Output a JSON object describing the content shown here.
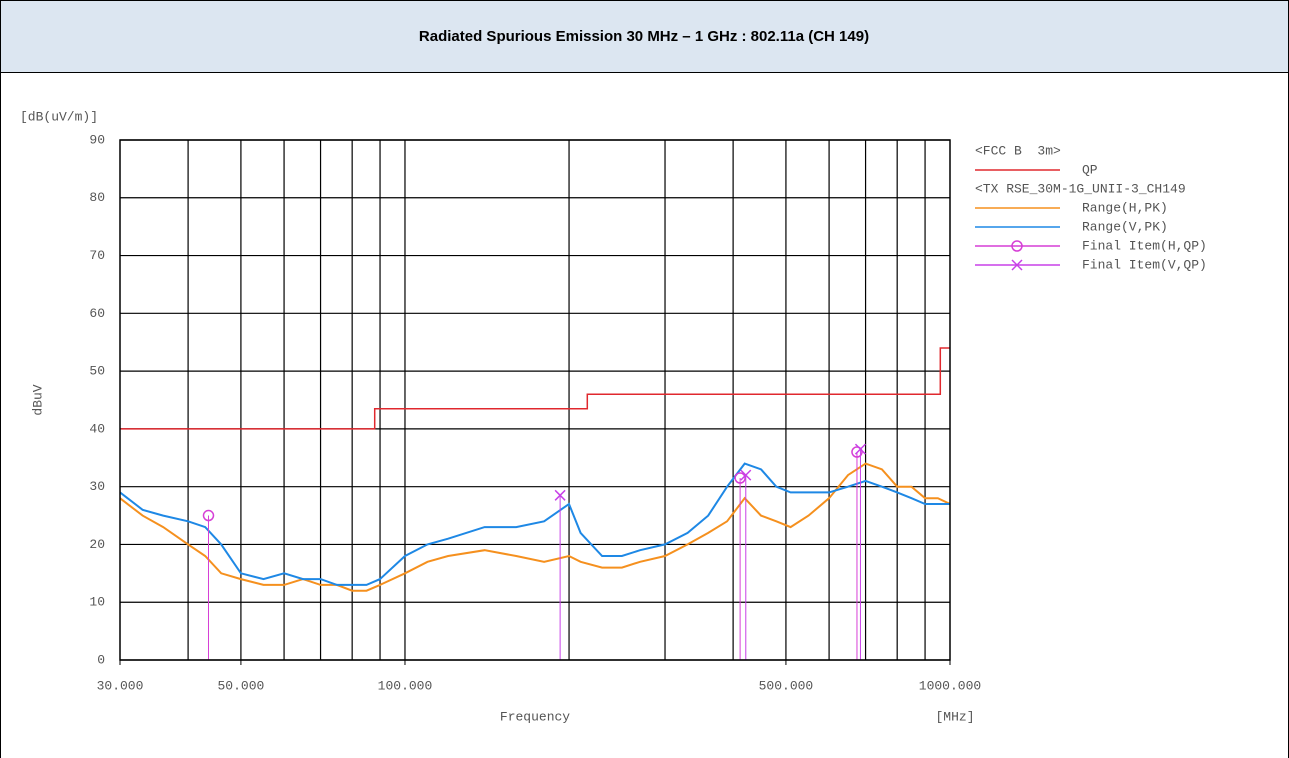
{
  "chart_data": {
    "type": "line",
    "title": "Radiated Spurious Emission 30 MHz – 1 GHz : 802.11a (CH 149)",
    "y_unit": "[dB(uV/m)]",
    "ylabel": "dBuV",
    "xlabel": "Frequency",
    "x_unit": "[MHz]",
    "xscale": "log",
    "grid": true,
    "xlim": [
      30,
      1000
    ],
    "ylim": [
      0,
      90
    ],
    "yticks": [
      0,
      10,
      20,
      30,
      40,
      50,
      60,
      70,
      80,
      90
    ],
    "xticks": [
      {
        "value": 30,
        "label": "30.000"
      },
      {
        "value": 50,
        "label": "50.000"
      },
      {
        "value": 100,
        "label": "100.000"
      },
      {
        "value": 500,
        "label": "500.000"
      },
      {
        "value": 1000,
        "label": "1000.000"
      }
    ],
    "xgrid_lines": [
      40,
      50,
      60,
      70,
      80,
      90,
      100,
      200,
      300,
      400,
      500,
      600,
      700,
      800,
      900
    ],
    "legend_headers": [
      "<FCC B  3m>",
      "<TX RSE_30M-1G_UNII-3_CH149"
    ],
    "series": [
      {
        "name": "QP",
        "color": "#e0282e",
        "mode": "line",
        "x": [
          30,
          88,
          88,
          216,
          216,
          960,
          960,
          1000
        ],
        "values": [
          40,
          40,
          43.5,
          43.5,
          46,
          46,
          54,
          54
        ]
      },
      {
        "name": "Range(H,PK)",
        "color": "#f5901e",
        "mode": "line",
        "x": [
          30,
          33,
          36,
          40,
          43,
          46,
          50,
          55,
          60,
          65,
          70,
          75,
          80,
          85,
          90,
          100,
          110,
          120,
          140,
          160,
          180,
          200,
          210,
          230,
          250,
          270,
          300,
          330,
          360,
          390,
          420,
          450,
          480,
          510,
          550,
          600,
          650,
          700,
          750,
          800,
          850,
          900,
          950,
          1000
        ],
        "values": [
          28,
          25,
          23,
          20,
          18,
          15,
          14,
          13,
          13,
          14,
          13,
          13,
          12,
          12,
          13,
          15,
          17,
          18,
          19,
          18,
          17,
          18,
          17,
          16,
          16,
          17,
          18,
          20,
          22,
          24,
          28,
          25,
          24,
          23,
          25,
          28,
          32,
          34,
          33,
          30,
          30,
          28,
          28,
          27
        ]
      },
      {
        "name": "Range(V,PK)",
        "color": "#1e88e5",
        "mode": "line",
        "x": [
          30,
          33,
          36,
          40,
          43,
          46,
          50,
          55,
          60,
          65,
          70,
          75,
          80,
          85,
          90,
          100,
          110,
          120,
          140,
          160,
          180,
          200,
          210,
          230,
          250,
          270,
          300,
          330,
          360,
          390,
          420,
          450,
          480,
          510,
          550,
          600,
          650,
          700,
          750,
          800,
          850,
          900,
          950,
          1000
        ],
        "values": [
          29,
          26,
          25,
          24,
          23,
          20,
          15,
          14,
          15,
          14,
          14,
          13,
          13,
          13,
          14,
          18,
          20,
          21,
          23,
          23,
          24,
          27,
          22,
          18,
          18,
          19,
          20,
          22,
          25,
          30,
          34,
          33,
          30,
          29,
          29,
          29,
          30,
          31,
          30,
          29,
          28,
          27,
          27,
          27
        ]
      },
      {
        "name": "Final Item(H,QP)",
        "color": "#d63fd6",
        "mode": "markers",
        "marker": "circle",
        "x": [
          43.6,
          412,
          675
        ],
        "values": [
          25,
          31.5,
          36
        ]
      },
      {
        "name": "Final Item(V,QP)",
        "color": "#c840e8",
        "mode": "markers",
        "marker": "x",
        "x": [
          192.6,
          422,
          685
        ],
        "values": [
          28.5,
          32,
          36.5
        ]
      }
    ]
  }
}
